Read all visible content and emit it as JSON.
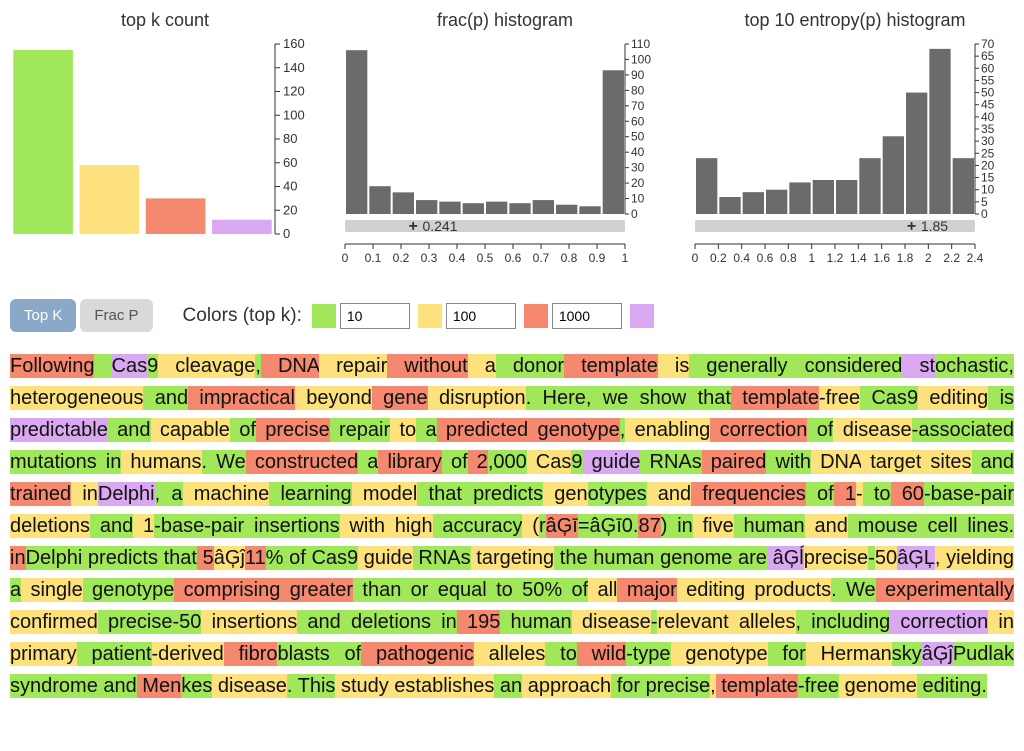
{
  "palette": {
    "green": "#a0e85a",
    "yellow": "#fde17c",
    "red": "#f5896f",
    "purple": "#d9a8f0",
    "gray_bar": "#6b6b6b",
    "axis": "#333333",
    "slider_track": "#d0d0d0",
    "btn_active": "#8aa8c9",
    "btn_inactive": "#d9d9d9"
  },
  "charts": {
    "topk": {
      "title": "top k count",
      "type": "bar",
      "bars": [
        {
          "value": 155,
          "color": "#a0e85a"
        },
        {
          "value": 58,
          "color": "#fde17c"
        },
        {
          "value": 30,
          "color": "#f5896f"
        },
        {
          "value": 12,
          "color": "#d9a8f0"
        }
      ],
      "ylim": [
        0,
        160
      ],
      "yticks": [
        0,
        20,
        40,
        60,
        80,
        100,
        120,
        140,
        160
      ],
      "bar_width": 0.9
    },
    "fracp": {
      "title": "frac(p) histogram",
      "type": "histogram",
      "bins": [
        106,
        18,
        14,
        9,
        8,
        7,
        8,
        7,
        9,
        6,
        5,
        93
      ],
      "xlim": [
        0,
        1
      ],
      "xticks": [
        0,
        0.1,
        0.2,
        0.3,
        0.4,
        0.5,
        0.6,
        0.7,
        0.8,
        0.9,
        1
      ],
      "ylim": [
        0,
        110
      ],
      "yticks": [
        0,
        10,
        20,
        30,
        40,
        50,
        60,
        70,
        80,
        90,
        100,
        110
      ],
      "bar_color": "#6b6b6b",
      "slider": {
        "min": 0,
        "max": 1,
        "value": 0.241,
        "label": "0.241"
      }
    },
    "entropy": {
      "title": "top 10 entropy(p) histogram",
      "type": "histogram",
      "bins": [
        23,
        7,
        9,
        10,
        13,
        14,
        14,
        23,
        32,
        50,
        68,
        23
      ],
      "xlim": [
        0,
        2.4
      ],
      "xticks": [
        0,
        0.2,
        0.4,
        0.6,
        0.8,
        1,
        1.2,
        1.4,
        1.6,
        1.8,
        2,
        2.2,
        2.4
      ],
      "ylim": [
        0,
        70
      ],
      "yticks": [
        0,
        5,
        10,
        15,
        20,
        25,
        30,
        35,
        40,
        45,
        50,
        55,
        60,
        65,
        70
      ],
      "bar_color": "#6b6b6b",
      "slider": {
        "min": 0,
        "max": 2.4,
        "value": 1.85,
        "label": "1.85"
      }
    }
  },
  "controls": {
    "toggles": [
      {
        "label": "Top K",
        "active": true
      },
      {
        "label": "Frac P",
        "active": false
      }
    ],
    "colors_label": "Colors (top k):",
    "thresholds": [
      {
        "color": "#a0e85a",
        "value": "10"
      },
      {
        "color": "#fde17c",
        "value": "100"
      },
      {
        "color": "#f5896f",
        "value": "1000"
      },
      {
        "color": "#d9a8f0",
        "value": ""
      }
    ]
  },
  "tokens": [
    {
      "t": "Following",
      "c": "red"
    },
    {
      "t": " ",
      "c": "green"
    },
    {
      "t": "Cas",
      "c": "purple"
    },
    {
      "t": "9",
      "c": "green"
    },
    {
      "t": " cleavage",
      "c": "yellow"
    },
    {
      "t": ",",
      "c": "green"
    },
    {
      "t": " DNA",
      "c": "red"
    },
    {
      "t": " repair",
      "c": "yellow"
    },
    {
      "t": " without",
      "c": "red"
    },
    {
      "t": " a",
      "c": "yellow"
    },
    {
      "t": " donor",
      "c": "green"
    },
    {
      "t": " template",
      "c": "red"
    },
    {
      "t": " is",
      "c": "yellow"
    },
    {
      "t": " generally",
      "c": "green"
    },
    {
      "t": " considered",
      "c": "green"
    },
    {
      "t": " st",
      "c": "purple"
    },
    {
      "t": "ochastic",
      "c": "green"
    },
    {
      "t": ",",
      "c": "green"
    },
    {
      "t": " heterogeneous",
      "c": "yellow"
    },
    {
      "t": " and",
      "c": "green"
    },
    {
      "t": " impractical",
      "c": "red"
    },
    {
      "t": " beyond",
      "c": "yellow"
    },
    {
      "t": " gene",
      "c": "red"
    },
    {
      "t": " disruption",
      "c": "yellow"
    },
    {
      "t": ".",
      "c": "green"
    },
    {
      "t": " Here",
      "c": "green"
    },
    {
      "t": ",",
      "c": "green"
    },
    {
      "t": " we",
      "c": "green"
    },
    {
      "t": " show",
      "c": "green"
    },
    {
      "t": " that",
      "c": "green"
    },
    {
      "t": " template",
      "c": "red"
    },
    {
      "t": "-free",
      "c": "yellow"
    },
    {
      "t": " Cas",
      "c": "green"
    },
    {
      "t": "9",
      "c": "green"
    },
    {
      "t": " editing",
      "c": "yellow"
    },
    {
      "t": " is",
      "c": "green"
    },
    {
      "t": " predictable",
      "c": "purple"
    },
    {
      "t": " and",
      "c": "green"
    },
    {
      "t": " capable",
      "c": "yellow"
    },
    {
      "t": " of",
      "c": "green"
    },
    {
      "t": " precise",
      "c": "red"
    },
    {
      "t": " repair",
      "c": "green"
    },
    {
      "t": " to",
      "c": "yellow"
    },
    {
      "t": " a",
      "c": "green"
    },
    {
      "t": " predicted",
      "c": "red"
    },
    {
      "t": " genotype",
      "c": "red"
    },
    {
      "t": ",",
      "c": "green"
    },
    {
      "t": " enabling",
      "c": "yellow"
    },
    {
      "t": " correction",
      "c": "red"
    },
    {
      "t": " of",
      "c": "green"
    },
    {
      "t": " disease",
      "c": "yellow"
    },
    {
      "t": "-associated",
      "c": "green"
    },
    {
      "t": " mutations",
      "c": "green"
    },
    {
      "t": " in",
      "c": "green"
    },
    {
      "t": " humans",
      "c": "yellow"
    },
    {
      "t": ".",
      "c": "green"
    },
    {
      "t": " We",
      "c": "green"
    },
    {
      "t": " constructed",
      "c": "red"
    },
    {
      "t": " a",
      "c": "green"
    },
    {
      "t": " library",
      "c": "red"
    },
    {
      "t": " of",
      "c": "green"
    },
    {
      "t": " 2",
      "c": "red"
    },
    {
      "t": ",",
      "c": "green"
    },
    {
      "t": "000",
      "c": "green"
    },
    {
      "t": " Cas",
      "c": "yellow"
    },
    {
      "t": "9",
      "c": "green"
    },
    {
      "t": " guide",
      "c": "purple"
    },
    {
      "t": " RNAs",
      "c": "green"
    },
    {
      "t": " paired",
      "c": "red"
    },
    {
      "t": " with",
      "c": "green"
    },
    {
      "t": " DNA",
      "c": "yellow"
    },
    {
      "t": " target",
      "c": "yellow"
    },
    {
      "t": " sites",
      "c": "yellow"
    },
    {
      "t": " and",
      "c": "green"
    },
    {
      "t": " trained",
      "c": "red"
    },
    {
      "t": " in",
      "c": "yellow"
    },
    {
      "t": "Delphi",
      "c": "purple"
    },
    {
      "t": ",",
      "c": "green"
    },
    {
      "t": " a",
      "c": "green"
    },
    {
      "t": " machine",
      "c": "yellow"
    },
    {
      "t": " learning",
      "c": "green"
    },
    {
      "t": " model",
      "c": "yellow"
    },
    {
      "t": " that",
      "c": "green"
    },
    {
      "t": " predicts",
      "c": "green"
    },
    {
      "t": " gen",
      "c": "yellow"
    },
    {
      "t": "otypes",
      "c": "green"
    },
    {
      "t": " and",
      "c": "yellow"
    },
    {
      "t": " frequencies",
      "c": "red"
    },
    {
      "t": " of",
      "c": "green"
    },
    {
      "t": " 1",
      "c": "red"
    },
    {
      "t": "-",
      "c": "yellow"
    },
    {
      "t": " to",
      "c": "green"
    },
    {
      "t": " 60",
      "c": "red"
    },
    {
      "t": "-base",
      "c": "green"
    },
    {
      "t": "-pair",
      "c": "green"
    },
    {
      "t": " deletions",
      "c": "yellow"
    },
    {
      "t": " and",
      "c": "green"
    },
    {
      "t": " 1",
      "c": "yellow"
    },
    {
      "t": "-base",
      "c": "green"
    },
    {
      "t": "-pair",
      "c": "green"
    },
    {
      "t": " insertions",
      "c": "green"
    },
    {
      "t": " with",
      "c": "yellow"
    },
    {
      "t": " high",
      "c": "yellow"
    },
    {
      "t": " accuracy",
      "c": "green"
    },
    {
      "t": " (",
      "c": "yellow"
    },
    {
      "t": "r",
      "c": "green"
    },
    {
      "t": "âĢī",
      "c": "red"
    },
    {
      "t": "=",
      "c": "green"
    },
    {
      "t": "âĢī",
      "c": "green"
    },
    {
      "t": "0",
      "c": "green"
    },
    {
      "t": ".",
      "c": "green"
    },
    {
      "t": "87",
      "c": "red"
    },
    {
      "t": ")",
      "c": "green"
    },
    {
      "t": " in",
      "c": "green"
    },
    {
      "t": " five",
      "c": "yellow"
    },
    {
      "t": " human",
      "c": "green"
    },
    {
      "t": " and",
      "c": "yellow"
    },
    {
      "t": " mouse",
      "c": "green"
    },
    {
      "t": " cell",
      "c": "green"
    },
    {
      "t": " lines",
      "c": "green"
    },
    {
      "t": ".",
      "c": "green"
    },
    {
      "t": " in",
      "c": "red"
    },
    {
      "t": "Delphi",
      "c": "green"
    },
    {
      "t": " predicts",
      "c": "green"
    },
    {
      "t": " that",
      "c": "green"
    },
    {
      "t": " 5",
      "c": "red"
    },
    {
      "t": "âĢĵ",
      "c": "yellow"
    },
    {
      "t": "11",
      "c": "red"
    },
    {
      "t": "%",
      "c": "green"
    },
    {
      "t": " of",
      "c": "green"
    },
    {
      "t": " Cas",
      "c": "green"
    },
    {
      "t": "9",
      "c": "green"
    },
    {
      "t": " guide",
      "c": "yellow"
    },
    {
      "t": " RNAs",
      "c": "green"
    },
    {
      "t": " targeting",
      "c": "yellow"
    },
    {
      "t": " the",
      "c": "green"
    },
    {
      "t": " human",
      "c": "green"
    },
    {
      "t": " genome",
      "c": "green"
    },
    {
      "t": " are",
      "c": "green"
    },
    {
      "t": " âĢĺ",
      "c": "purple"
    },
    {
      "t": "precise",
      "c": "yellow"
    },
    {
      "t": "-",
      "c": "green"
    },
    {
      "t": "50",
      "c": "yellow"
    },
    {
      "t": "âĢĻ",
      "c": "purple"
    },
    {
      "t": ",",
      "c": "yellow"
    },
    {
      "t": " yielding",
      "c": "yellow"
    },
    {
      "t": " a",
      "c": "green"
    },
    {
      "t": " single",
      "c": "yellow"
    },
    {
      "t": " genotype",
      "c": "green"
    },
    {
      "t": " comprising",
      "c": "red"
    },
    {
      "t": " greater",
      "c": "red"
    },
    {
      "t": " than",
      "c": "green"
    },
    {
      "t": " or",
      "c": "green"
    },
    {
      "t": " equal",
      "c": "green"
    },
    {
      "t": " to",
      "c": "green"
    },
    {
      "t": " 50",
      "c": "green"
    },
    {
      "t": "%",
      "c": "green"
    },
    {
      "t": " of",
      "c": "green"
    },
    {
      "t": " all",
      "c": "yellow"
    },
    {
      "t": " major",
      "c": "red"
    },
    {
      "t": " editing",
      "c": "yellow"
    },
    {
      "t": " products",
      "c": "yellow"
    },
    {
      "t": ".",
      "c": "green"
    },
    {
      "t": " We",
      "c": "green"
    },
    {
      "t": " experimentally",
      "c": "red"
    },
    {
      "t": " confirmed",
      "c": "yellow"
    },
    {
      "t": " precise",
      "c": "green"
    },
    {
      "t": "-",
      "c": "green"
    },
    {
      "t": "50",
      "c": "green"
    },
    {
      "t": " insertions",
      "c": "yellow"
    },
    {
      "t": " and",
      "c": "green"
    },
    {
      "t": " deletions",
      "c": "green"
    },
    {
      "t": " in",
      "c": "green"
    },
    {
      "t": " 195",
      "c": "red"
    },
    {
      "t": " human",
      "c": "green"
    },
    {
      "t": " disease",
      "c": "yellow"
    },
    {
      "t": "-",
      "c": "green"
    },
    {
      "t": "relevant",
      "c": "yellow"
    },
    {
      "t": " alleles",
      "c": "yellow"
    },
    {
      "t": ",",
      "c": "green"
    },
    {
      "t": " including",
      "c": "green"
    },
    {
      "t": " correction",
      "c": "purple"
    },
    {
      "t": " in",
      "c": "yellow"
    },
    {
      "t": " primary",
      "c": "yellow"
    },
    {
      "t": " patient",
      "c": "green"
    },
    {
      "t": "-derived",
      "c": "yellow"
    },
    {
      "t": " fibro",
      "c": "red"
    },
    {
      "t": "blasts",
      "c": "green"
    },
    {
      "t": " of",
      "c": "green"
    },
    {
      "t": " pathogenic",
      "c": "red"
    },
    {
      "t": " alleles",
      "c": "yellow"
    },
    {
      "t": " to",
      "c": "green"
    },
    {
      "t": " wild",
      "c": "red"
    },
    {
      "t": "-type",
      "c": "green"
    },
    {
      "t": " genotype",
      "c": "yellow"
    },
    {
      "t": " for",
      "c": "green"
    },
    {
      "t": " Herman",
      "c": "yellow"
    },
    {
      "t": "sky",
      "c": "green"
    },
    {
      "t": "âĢĵ",
      "c": "purple"
    },
    {
      "t": "P",
      "c": "green"
    },
    {
      "t": "udlak",
      "c": "green"
    },
    {
      "t": " syndrome",
      "c": "green"
    },
    {
      "t": " and",
      "c": "green"
    },
    {
      "t": " Men",
      "c": "red"
    },
    {
      "t": "kes",
      "c": "green"
    },
    {
      "t": " disease",
      "c": "yellow"
    },
    {
      "t": ".",
      "c": "green"
    },
    {
      "t": " This",
      "c": "green"
    },
    {
      "t": " study",
      "c": "yellow"
    },
    {
      "t": " establishes",
      "c": "yellow"
    },
    {
      "t": " an",
      "c": "green"
    },
    {
      "t": " approach",
      "c": "yellow"
    },
    {
      "t": " for",
      "c": "green"
    },
    {
      "t": " precise",
      "c": "green"
    },
    {
      "t": ",",
      "c": "yellow"
    },
    {
      "t": " template",
      "c": "red"
    },
    {
      "t": "-free",
      "c": "green"
    },
    {
      "t": " genome",
      "c": "yellow"
    },
    {
      "t": " editing",
      "c": "green"
    },
    {
      "t": ".",
      "c": "green"
    }
  ]
}
